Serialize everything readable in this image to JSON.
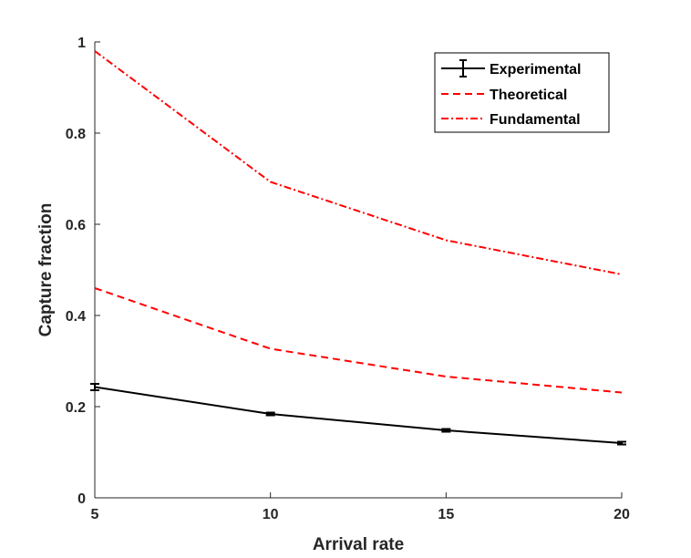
{
  "chart_data": {
    "type": "line",
    "title": "",
    "xlabel": "Arrival rate",
    "ylabel": "Capture fraction",
    "x": [
      5,
      10,
      15,
      20
    ],
    "xlim": [
      5,
      20
    ],
    "ylim": [
      0,
      1
    ],
    "xticks": [
      "5",
      "10",
      "15",
      "20"
    ],
    "yticks": [
      "0",
      "0.2",
      "0.4",
      "0.6",
      "0.8",
      "1"
    ],
    "legend_position": "top-right",
    "series": [
      {
        "name": "Experimental",
        "values": [
          0.243,
          0.184,
          0.148,
          0.12
        ],
        "errors": [
          0.007,
          0.003,
          0.003,
          0.003
        ],
        "color": "#000000",
        "style": "solid"
      },
      {
        "name": "Theoretical",
        "values": [
          0.46,
          0.327,
          0.266,
          0.231
        ],
        "color": "#ff0000",
        "style": "dashed"
      },
      {
        "name": "Fundamental",
        "values": [
          0.98,
          0.693,
          0.565,
          0.49
        ],
        "color": "#ff0000",
        "style": "dashdot"
      }
    ]
  }
}
